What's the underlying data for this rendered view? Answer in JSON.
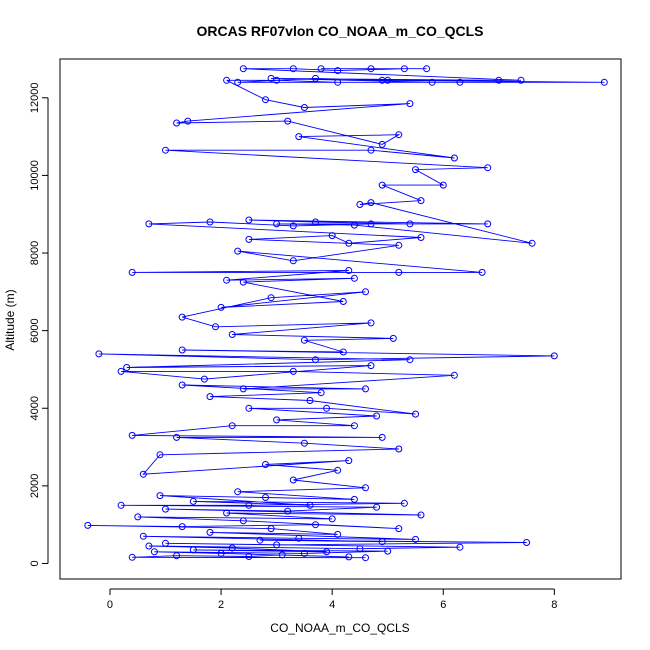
{
  "chart_data": {
    "type": "scatter",
    "title": "ORCAS RF07vlon CO_NOAA_m_CO_QCLS",
    "xlabel": "CO_NOAA_m_CO_QCLS",
    "ylabel": "Altitude (m)",
    "xlim": [
      -0.9,
      9.2
    ],
    "ylim": [
      -400,
      13000
    ],
    "xticks": [
      0,
      2,
      4,
      6,
      8
    ],
    "yticks": [
      0,
      2000,
      4000,
      6000,
      8000,
      10000,
      12000
    ],
    "grid": false,
    "series": [
      {
        "name": "CO_NOAA_m_CO_QCLS",
        "style": "line+circle",
        "points": [
          [
            4.6,
            150
          ],
          [
            0.4,
            160
          ],
          [
            1.2,
            200
          ],
          [
            2.5,
            180
          ],
          [
            3.1,
            220
          ],
          [
            4.3,
            170
          ],
          [
            2.0,
            260
          ],
          [
            0.8,
            300
          ],
          [
            3.5,
            260
          ],
          [
            5.0,
            320
          ],
          [
            1.5,
            350
          ],
          [
            3.9,
            300
          ],
          [
            2.2,
            400
          ],
          [
            0.7,
            450
          ],
          [
            4.5,
            380
          ],
          [
            6.3,
            420
          ],
          [
            1.0,
            520
          ],
          [
            3.0,
            480
          ],
          [
            7.5,
            540
          ],
          [
            2.7,
            600
          ],
          [
            4.9,
            560
          ],
          [
            0.6,
            700
          ],
          [
            3.4,
            650
          ],
          [
            5.5,
            620
          ],
          [
            1.8,
            800
          ],
          [
            4.1,
            750
          ],
          [
            2.9,
            900
          ],
          [
            -0.4,
            980
          ],
          [
            1.3,
            950
          ],
          [
            3.7,
            1000
          ],
          [
            5.2,
            900
          ],
          [
            2.4,
            1100
          ],
          [
            0.5,
            1200
          ],
          [
            4.0,
            1150
          ],
          [
            2.1,
            1300
          ],
          [
            5.6,
            1250
          ],
          [
            1.0,
            1400
          ],
          [
            3.2,
            1350
          ],
          [
            4.8,
            1450
          ],
          [
            0.2,
            1500
          ],
          [
            2.5,
            1500
          ],
          [
            5.3,
            1550
          ],
          [
            1.5,
            1600
          ],
          [
            3.6,
            1500
          ],
          [
            0.9,
            1750
          ],
          [
            2.8,
            1700
          ],
          [
            4.4,
            1650
          ],
          [
            2.3,
            1850
          ],
          [
            4.6,
            1950
          ],
          [
            3.3,
            2150
          ],
          [
            4.1,
            2400
          ],
          [
            2.8,
            2550
          ],
          [
            4.3,
            2650
          ],
          [
            0.6,
            2300
          ],
          [
            0.9,
            2800
          ],
          [
            5.2,
            2950
          ],
          [
            3.5,
            3100
          ],
          [
            1.2,
            3250
          ],
          [
            4.9,
            3250
          ],
          [
            0.4,
            3300
          ],
          [
            2.2,
            3550
          ],
          [
            4.4,
            3550
          ],
          [
            3.0,
            3700
          ],
          [
            4.8,
            3800
          ],
          [
            2.5,
            4000
          ],
          [
            3.9,
            4000
          ],
          [
            5.5,
            3850
          ],
          [
            3.6,
            4200
          ],
          [
            1.8,
            4300
          ],
          [
            3.8,
            4400
          ],
          [
            1.3,
            4600
          ],
          [
            4.6,
            4500
          ],
          [
            2.4,
            4500
          ],
          [
            6.2,
            4850
          ],
          [
            3.3,
            4950
          ],
          [
            0.2,
            4950
          ],
          [
            1.7,
            4750
          ],
          [
            4.7,
            5100
          ],
          [
            0.3,
            5050
          ],
          [
            5.4,
            5250
          ],
          [
            -0.2,
            5400
          ],
          [
            3.7,
            5250
          ],
          [
            8.0,
            5350
          ],
          [
            1.3,
            5500
          ],
          [
            4.2,
            5450
          ],
          [
            3.5,
            5750
          ],
          [
            5.1,
            5800
          ],
          [
            2.2,
            5900
          ],
          [
            4.7,
            6200
          ],
          [
            1.9,
            6100
          ],
          [
            1.3,
            6350
          ],
          [
            2.9,
            6850
          ],
          [
            4.6,
            7000
          ],
          [
            2.0,
            6600
          ],
          [
            4.2,
            6750
          ],
          [
            2.4,
            7250
          ],
          [
            4.4,
            7350
          ],
          [
            2.1,
            7300
          ],
          [
            4.3,
            7550
          ],
          [
            0.4,
            7500
          ],
          [
            5.2,
            7500
          ],
          [
            6.7,
            7500
          ],
          [
            2.3,
            8050
          ],
          [
            3.3,
            7800
          ],
          [
            5.2,
            8200
          ],
          [
            2.5,
            8350
          ],
          [
            4.0,
            8450
          ],
          [
            4.3,
            8250
          ],
          [
            5.6,
            8400
          ],
          [
            0.7,
            8750
          ],
          [
            1.8,
            8800
          ],
          [
            3.3,
            8700
          ],
          [
            4.7,
            8750
          ],
          [
            6.8,
            8750
          ],
          [
            2.5,
            8850
          ],
          [
            3.7,
            8800
          ],
          [
            5.4,
            8750
          ],
          [
            3.0,
            8750
          ],
          [
            4.4,
            8720
          ],
          [
            7.6,
            8250
          ],
          [
            4.7,
            9300
          ],
          [
            4.5,
            9250
          ],
          [
            5.6,
            9350
          ],
          [
            4.9,
            9750
          ],
          [
            6.0,
            9750
          ],
          [
            5.5,
            10150
          ],
          [
            6.8,
            10200
          ],
          [
            1.0,
            10650
          ],
          [
            4.7,
            10650
          ],
          [
            6.2,
            10450
          ],
          [
            3.4,
            11000
          ],
          [
            5.2,
            11050
          ],
          [
            4.9,
            10800
          ],
          [
            3.2,
            11400
          ],
          [
            1.2,
            11350
          ],
          [
            1.4,
            11400
          ],
          [
            5.4,
            11850
          ],
          [
            3.5,
            11750
          ],
          [
            2.8,
            11950
          ],
          [
            2.1,
            12450
          ],
          [
            3.0,
            12450
          ],
          [
            4.1,
            12400
          ],
          [
            6.3,
            12400
          ],
          [
            8.9,
            12400
          ],
          [
            4.9,
            12450
          ],
          [
            7.0,
            12450
          ],
          [
            2.9,
            12500
          ],
          [
            5.8,
            12400
          ],
          [
            2.3,
            12400
          ],
          [
            3.7,
            12500
          ],
          [
            5.0,
            12450
          ],
          [
            7.4,
            12450
          ],
          [
            2.4,
            12750
          ],
          [
            3.3,
            12750
          ],
          [
            4.1,
            12700
          ],
          [
            5.3,
            12750
          ],
          [
            4.7,
            12750
          ],
          [
            3.8,
            12750
          ],
          [
            5.7,
            12750
          ]
        ]
      }
    ]
  },
  "colors": {
    "series": "#0000ff",
    "axes": "#000000",
    "background": "#ffffff"
  }
}
